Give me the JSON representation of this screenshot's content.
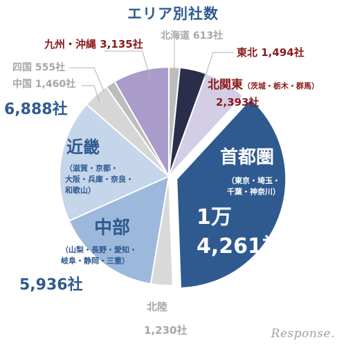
{
  "chart_data": {
    "type": "pie",
    "title": "エリア別社数",
    "slices": [
      {
        "name": "北海道",
        "value_label": "613社",
        "value": 613,
        "color": "#bdbdbd"
      },
      {
        "name": "東北",
        "value_label": "1,494社",
        "value": 1494,
        "color": "#2b2e4a"
      },
      {
        "name": "北関東",
        "sub": "（茨城・栃木・群馬）",
        "value_label": "2,393社",
        "value": 2393,
        "color": "#d3cde6"
      },
      {
        "name": "首都圏",
        "sub1": "（東京・埼玉・",
        "sub2": "千葉・神奈川）",
        "value_label1": "1万",
        "value_label2": "4,261社",
        "value": 14261,
        "color": "#2f5a8f"
      },
      {
        "name": "北陸",
        "value_label": "1,230社",
        "value": 1230,
        "color": "#d9d9d9"
      },
      {
        "name": "中部",
        "sub1": "（山梨・長野・愛知・",
        "sub2": "岐阜・静岡・三重）",
        "value_label": "5,936社",
        "value": 5936,
        "color": "#9cb9dc"
      },
      {
        "name": "近畿",
        "sub1": "（滋賀・京都・",
        "sub2": "大阪・兵庫・奈良・",
        "sub3": "和歌山）",
        "value_label": "6,888社",
        "value": 6888,
        "color": "#c5d5ea"
      },
      {
        "name": "中国",
        "value_label": "1,460社",
        "value": 1460,
        "color": "#d6d6d6"
      },
      {
        "name": "四国",
        "value_label": "555社",
        "value": 555,
        "color": "#bdbdbd"
      },
      {
        "name": "九州・沖縄",
        "value_label": "3,135社",
        "value": 3135,
        "color": "#a99ccb"
      }
    ]
  },
  "watermark": "Response.",
  "colors": {
    "title": "#2f5a8f",
    "gray_label": "#a6a6a6",
    "dark_red": "#8b1a1a",
    "leader": "#b0b0b0"
  }
}
